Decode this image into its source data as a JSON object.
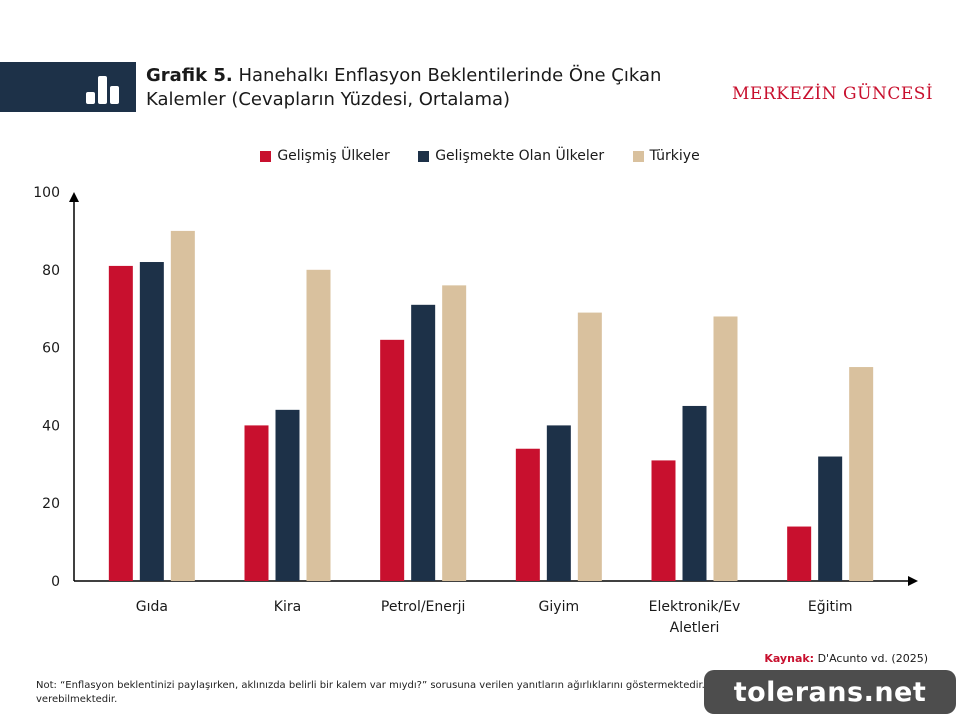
{
  "header": {
    "title_bold": "Grafik 5.",
    "title_line1": "Hanehalkı Enflasyon Beklentilerinde Öne Çıkan",
    "title_line2": "Kalemler (Cevapların Yüzdesi, Ortalama)",
    "brand": "MERKEZİN GÜNCESİ",
    "icon": "bar-chart-icon",
    "block_color": "#1d3148"
  },
  "chart_data": {
    "type": "bar",
    "categories": [
      "Gıda",
      "Kira",
      "Petrol/Enerji",
      "Giyim",
      "Elektronik/Ev Aletleri",
      "Eğitim"
    ],
    "category_lines": [
      [
        "Gıda"
      ],
      [
        "Kira"
      ],
      [
        "Petrol/Enerji"
      ],
      [
        "Giyim"
      ],
      [
        "Elektronik/Ev",
        "Aletleri"
      ],
      [
        "Eğitim"
      ]
    ],
    "series": [
      {
        "name": "Gelişmiş Ülkeler",
        "color": "#c8102e",
        "values": [
          81,
          40,
          62,
          34,
          31,
          14
        ]
      },
      {
        "name": "Gelişmekte Olan Ülkeler",
        "color": "#1d3148",
        "values": [
          82,
          44,
          71,
          40,
          45,
          32
        ]
      },
      {
        "name": "Türkiye",
        "color": "#d9c19e",
        "values": [
          90,
          80,
          76,
          69,
          68,
          55
        ]
      }
    ],
    "ylim": [
      0,
      100
    ],
    "yticks": [
      0,
      20,
      40,
      60,
      80,
      100
    ],
    "xlabel": "",
    "ylabel": "",
    "grid": false,
    "legend_position": "top-center"
  },
  "footer": {
    "source_label": "Kaynak:",
    "source_text": "D'Acunto vd. (2025)",
    "note": "Not: “Enflasyon beklentinizi paylaşırken, aklınızda belirli bir kalem var mıydı?” sorusuna verilen yanıtların ağırlıklarını göstermektedir. Katılımcılar birden fazla kalem için cevap verebilmektedir."
  },
  "watermark": "tolerans.net"
}
